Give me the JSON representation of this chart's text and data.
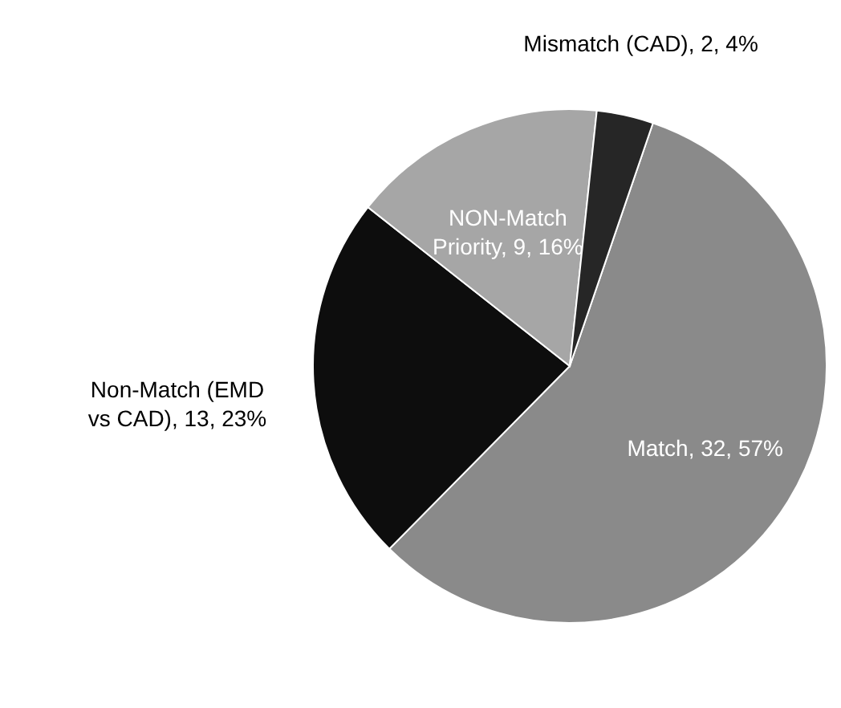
{
  "chart_data": {
    "type": "pie",
    "categories": [
      "Match",
      "Non-Match (EMD vs CAD)",
      "NON-Match Priority",
      "Mismatch (CAD)"
    ],
    "values": [
      32,
      13,
      9,
      2
    ],
    "value_labels": [
      "32, 57%",
      "13, 23%",
      "9, 16%",
      "2, 4%"
    ],
    "colors": [
      "#8a8a8a",
      "#0d0d0d",
      "#a6a6a6",
      "#262626"
    ]
  }
}
